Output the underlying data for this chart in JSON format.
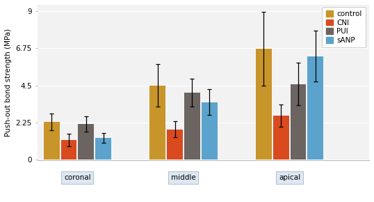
{
  "groups": [
    "coronal",
    "middle",
    "apical"
  ],
  "series": [
    "control",
    "CNI",
    "PUI",
    "sANP"
  ],
  "colors": [
    "#C8952A",
    "#D94A1E",
    "#6B6460",
    "#5BA3CC"
  ],
  "values": [
    [
      2.28,
      1.18,
      2.15,
      1.3
    ],
    [
      4.5,
      1.82,
      4.05,
      3.48
    ],
    [
      6.72,
      2.65,
      4.58,
      6.28
    ]
  ],
  "errors": [
    [
      0.5,
      0.38,
      0.48,
      0.28
    ],
    [
      1.3,
      0.48,
      0.85,
      0.8
    ],
    [
      2.25,
      0.68,
      1.28,
      1.55
    ]
  ],
  "ylabel": "Push-out bond strength (MPa)",
  "yticks": [
    0,
    2.25,
    4.5,
    6.75,
    9
  ],
  "ytick_labels": [
    "0",
    "2.25",
    "4.5",
    "6.75",
    "9"
  ],
  "ylim": [
    -0.05,
    9.4
  ],
  "bg_color": "#F2F2F2",
  "bar_width": 0.13,
  "group_centers": [
    0.25,
    1.05,
    1.85
  ],
  "legend_fontsize": 7.5,
  "axis_fontsize": 7.5,
  "tick_fontsize": 7.5,
  "label_bg_color": "#DDE8F2",
  "label_bg_edgecolor": "#AAC0D0",
  "xlim": [
    -0.05,
    2.45
  ]
}
